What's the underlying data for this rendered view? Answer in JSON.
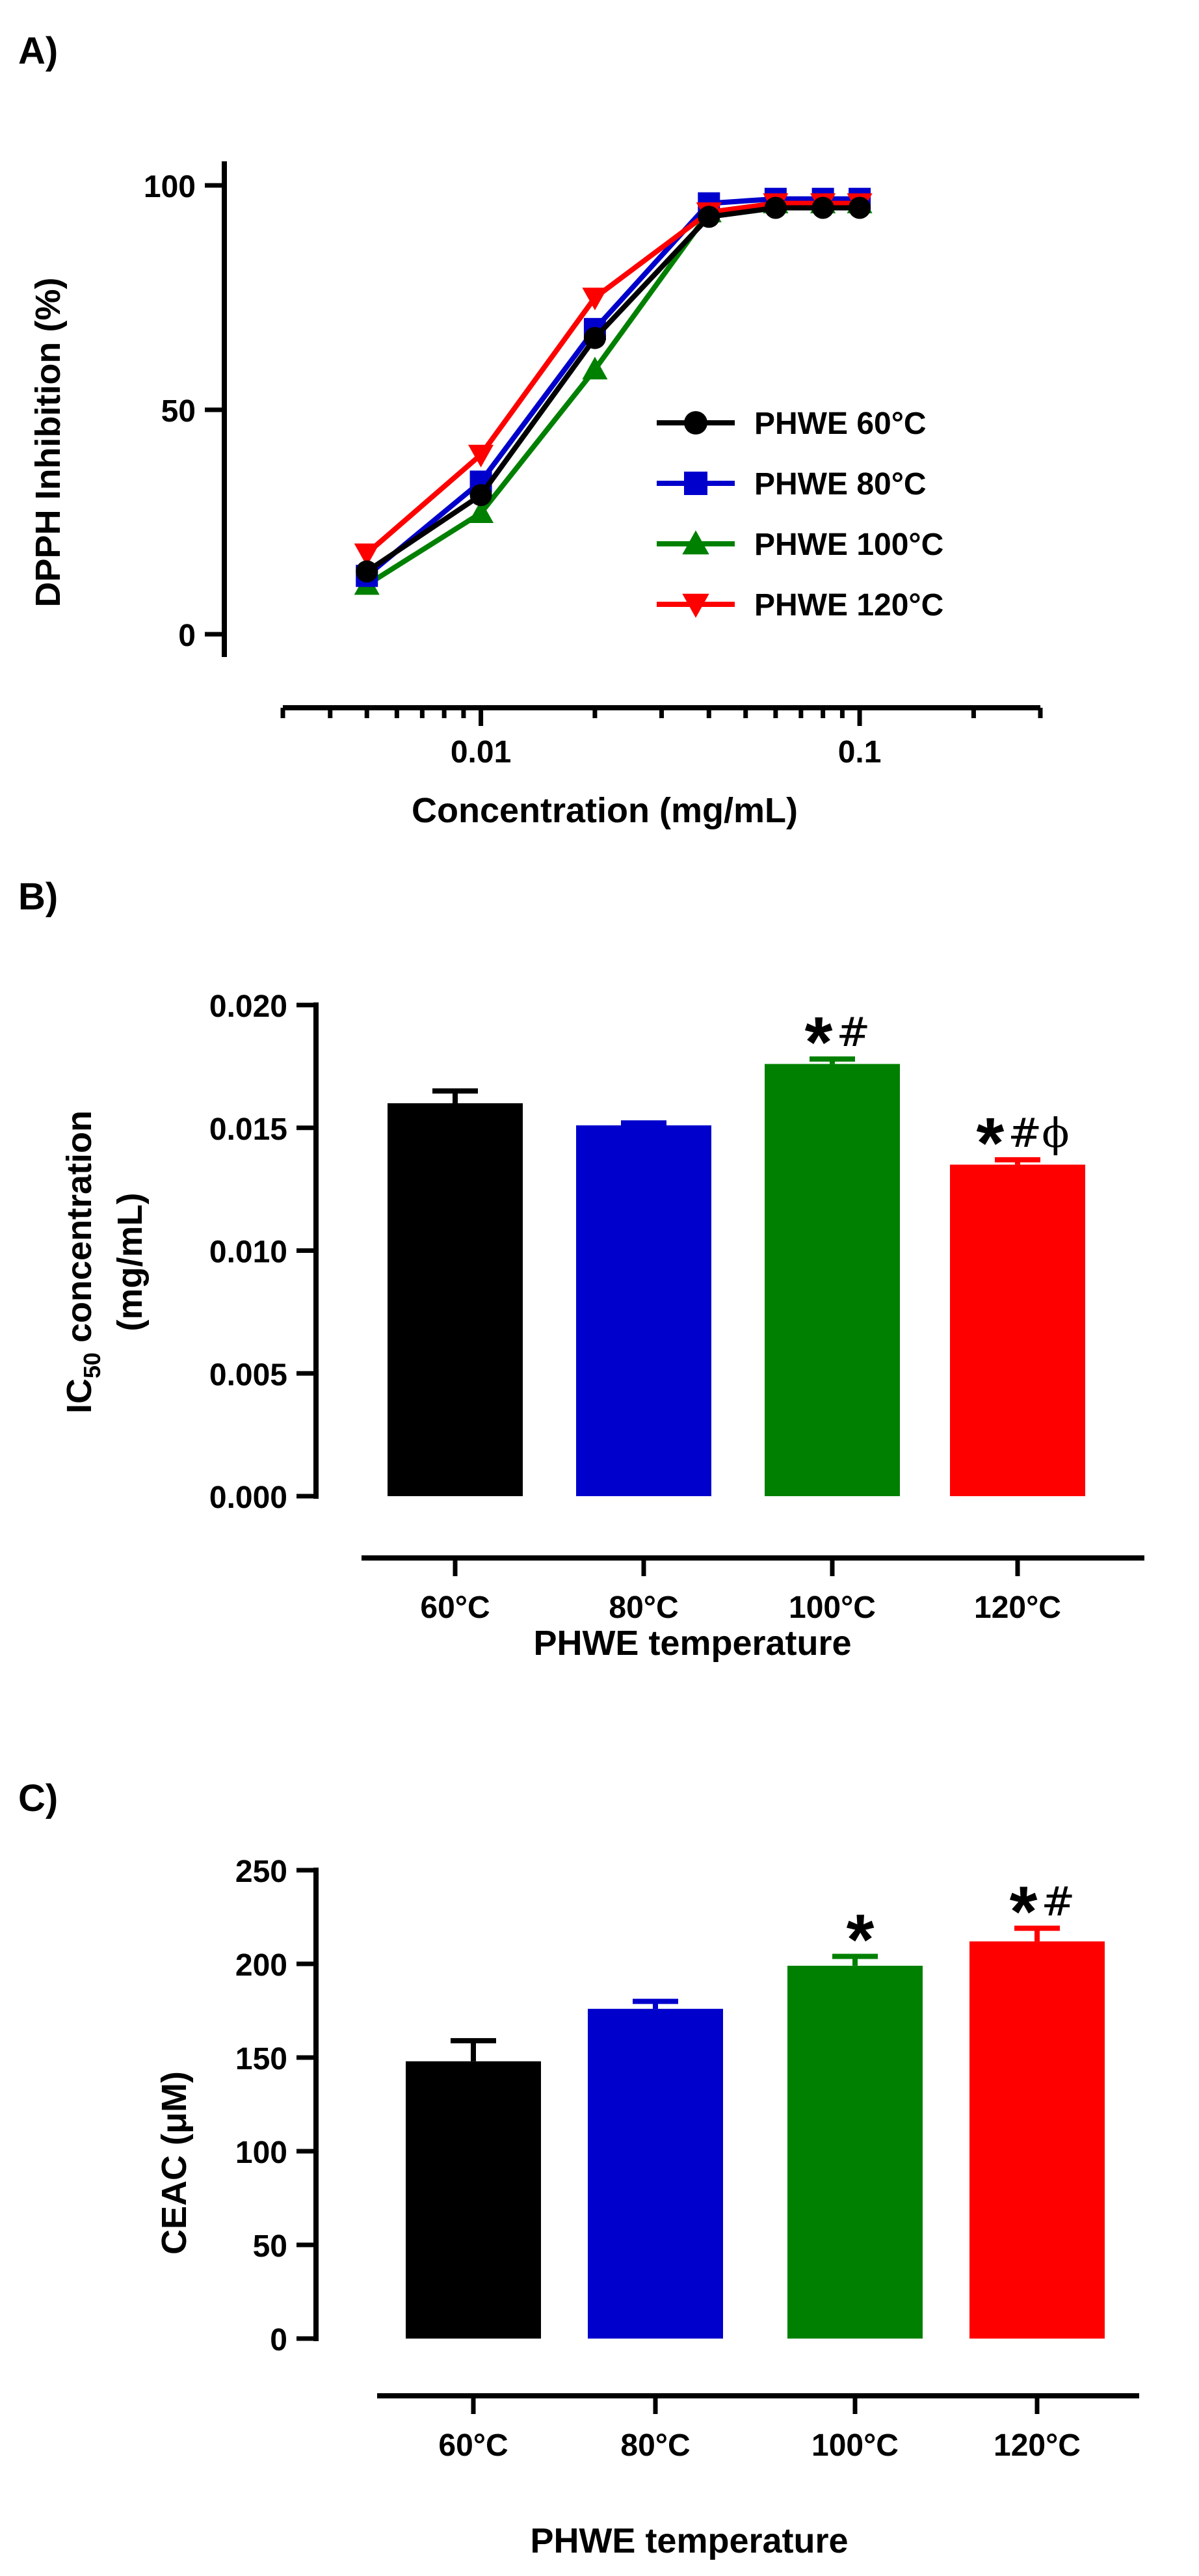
{
  "colors": {
    "PHWE 60°C": "#000000",
    "PHWE 80°C": "#0000CC",
    "PHWE 100°C": "#008000",
    "PHWE 120°C": "#FF0000"
  },
  "chart_data": [
    {
      "panel_label": "A)",
      "type": "line",
      "xscale": "log",
      "title": "",
      "xlabel": "Concentration (mg/mL)",
      "ylabel": "DPPH Inhibition (%)",
      "xlim": [
        0.003,
        0.3
      ],
      "ylim": [
        0,
        100
      ],
      "xticks": [
        0.01,
        0.1
      ],
      "xtick_labels": [
        "0.01",
        "0.1"
      ],
      "yticks": [
        0,
        50,
        100
      ],
      "ytick_labels": [
        "0",
        "50",
        "100"
      ],
      "legend_position": "center-right",
      "x": [
        0.005,
        0.01,
        0.02,
        0.04,
        0.06,
        0.08,
        0.1
      ],
      "series": [
        {
          "name": "PHWE 60°C",
          "marker": "circle",
          "values": [
            14,
            31,
            66,
            93,
            95,
            95,
            95
          ]
        },
        {
          "name": "PHWE 80°C",
          "marker": "square",
          "values": [
            13,
            34,
            68,
            96,
            97,
            97,
            97
          ]
        },
        {
          "name": "PHWE 100°C",
          "marker": "triangle-up",
          "values": [
            11,
            27,
            59,
            94,
            96,
            96,
            96
          ]
        },
        {
          "name": "PHWE 120°C",
          "marker": "triangle-down",
          "values": [
            18,
            40,
            75,
            94,
            96,
            96,
            96
          ]
        }
      ]
    },
    {
      "panel_label": "B)",
      "type": "bar",
      "title": "",
      "xlabel": "PHWE temperature",
      "ylabel_main": "IC",
      "ylabel_sub": "50",
      "ylabel_rest": " concentration",
      "ylabel_line2": "(mg/mL)",
      "ylim": [
        0,
        0.02
      ],
      "yticks": [
        0,
        0.005,
        0.01,
        0.015,
        0.02
      ],
      "ytick_labels": [
        "0.000",
        "0.005",
        "0.010",
        "0.015",
        "0.020"
      ],
      "categories": [
        "60°C",
        "80°C",
        "100°C",
        "120°C"
      ],
      "values": [
        0.016,
        0.0151,
        0.0176,
        0.0135
      ],
      "errors": [
        0.0005,
        0.0001,
        0.0002,
        0.0002
      ],
      "annotations": [
        {
          "star": "",
          "rest": ""
        },
        {
          "star": "",
          "rest": ""
        },
        {
          "star": "*",
          "rest": "#"
        },
        {
          "star": "*",
          "rest": "#ϕ"
        }
      ]
    },
    {
      "panel_label": "C)",
      "type": "bar",
      "title": "",
      "xlabel": "PHWE temperature",
      "ylabel": "CEAC (μM)",
      "ylim": [
        0,
        250
      ],
      "yticks": [
        0,
        50,
        100,
        150,
        200,
        250
      ],
      "ytick_labels": [
        "0",
        "50",
        "100",
        "150",
        "200",
        "250"
      ],
      "categories": [
        "60°C",
        "80°C",
        "100°C",
        "120°C"
      ],
      "values": [
        148,
        176,
        199,
        212
      ],
      "errors": [
        11,
        4,
        5,
        7
      ],
      "annotations": [
        {
          "star": "",
          "rest": ""
        },
        {
          "star": "",
          "rest": ""
        },
        {
          "star": "*",
          "rest": ""
        },
        {
          "star": "*",
          "rest": "#"
        }
      ]
    }
  ]
}
